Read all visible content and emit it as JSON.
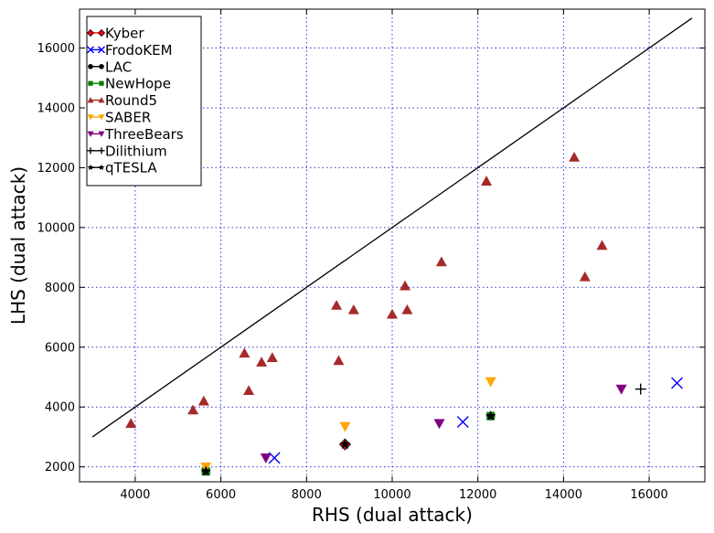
{
  "chart_data": {
    "type": "scatter",
    "title": "",
    "xlabel": "RHS (dual attack)",
    "ylabel": "LHS (dual attack)",
    "xlim": [
      2700,
      17300
    ],
    "ylim": [
      1500,
      17300
    ],
    "xticks": [
      4000,
      6000,
      8000,
      10000,
      12000,
      14000,
      16000
    ],
    "yticks": [
      2000,
      4000,
      6000,
      8000,
      10000,
      12000,
      14000,
      16000
    ],
    "grid": true,
    "legend_position": "top-left",
    "reference_line": [
      [
        3000,
        3000
      ],
      [
        17000,
        17000
      ]
    ],
    "series": [
      {
        "name": "Kyber",
        "marker": "diamond",
        "color": "#ff0000",
        "points": [
          [
            8900,
            2750
          ]
        ]
      },
      {
        "name": "FrodoKEM",
        "marker": "x",
        "color": "#0000ff",
        "points": [
          [
            7250,
            2300
          ],
          [
            11650,
            3500
          ],
          [
            16650,
            4800
          ]
        ]
      },
      {
        "name": "LAC",
        "marker": "circle",
        "color": "#000000",
        "points": [
          [
            5650,
            1850
          ],
          [
            12300,
            3700
          ]
        ]
      },
      {
        "name": "NewHope",
        "marker": "square",
        "color": "#008000",
        "points": [
          [
            5650,
            1850
          ],
          [
            12300,
            3700
          ]
        ]
      },
      {
        "name": "Round5",
        "marker": "triangle-up",
        "color": "#a52a2a",
        "points": [
          [
            3900,
            3450
          ],
          [
            5350,
            3900
          ],
          [
            5600,
            4200
          ],
          [
            6550,
            5800
          ],
          [
            6650,
            4550
          ],
          [
            6950,
            5500
          ],
          [
            7200,
            5650
          ],
          [
            8700,
            7400
          ],
          [
            8750,
            5550
          ],
          [
            9100,
            7250
          ],
          [
            10000,
            7100
          ],
          [
            10300,
            8050
          ],
          [
            10350,
            7250
          ],
          [
            11150,
            8850
          ],
          [
            12200,
            11550
          ],
          [
            14250,
            12350
          ],
          [
            14500,
            8350
          ],
          [
            14900,
            9400
          ]
        ]
      },
      {
        "name": "SABER",
        "marker": "triangle-down",
        "color": "#ffa500",
        "points": [
          [
            5650,
            2000
          ],
          [
            8900,
            3350
          ],
          [
            12300,
            4850
          ]
        ]
      },
      {
        "name": "ThreeBears",
        "marker": "triangle-down",
        "color": "#800080",
        "points": [
          [
            7050,
            2300
          ],
          [
            11100,
            3450
          ],
          [
            15350,
            4600
          ]
        ]
      },
      {
        "name": "Dilithium",
        "marker": "plus",
        "color": "#000000",
        "points": [
          [
            15800,
            4600
          ]
        ]
      },
      {
        "name": "qTESLA",
        "marker": "star",
        "color": "#000000",
        "points": [
          [
            5650,
            1850
          ],
          [
            12300,
            3700
          ],
          [
            8900,
            2750
          ]
        ]
      }
    ]
  }
}
